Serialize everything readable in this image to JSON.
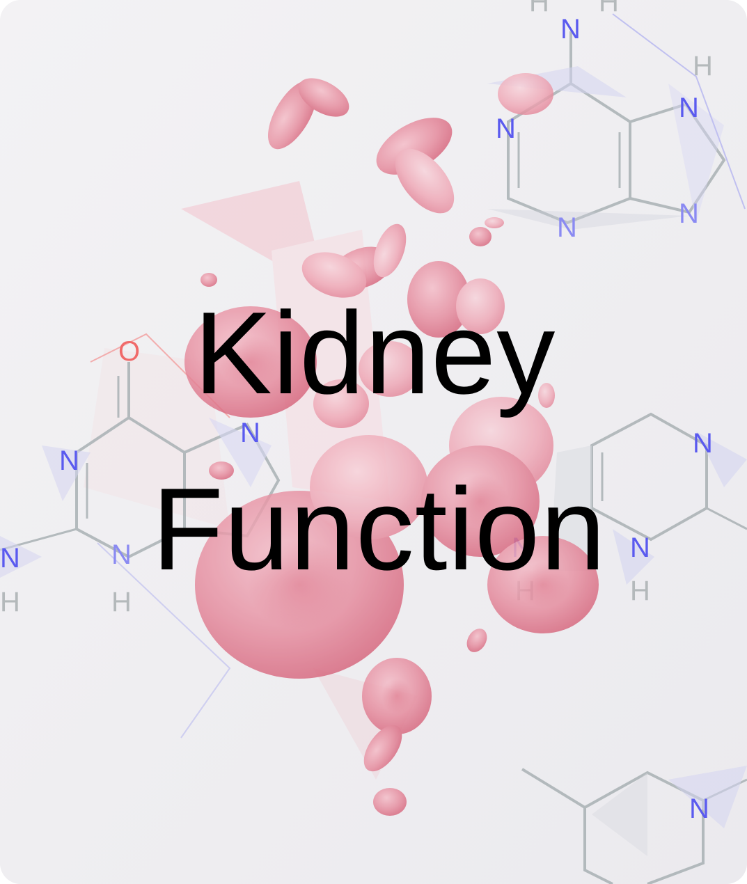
{
  "card": {
    "title_line_1": "Kidney",
    "title_line_2": "Function"
  },
  "artwork": {
    "subject": "blood-cells-and-molecules",
    "atom_labels": {
      "nitrogen": "N",
      "hydrogen": "H",
      "oxygen": "O"
    }
  },
  "colors": {
    "background": "#efeef1",
    "blood_cell": "#d9516b",
    "molecule_bond": "#9aa3a6",
    "nitrogen": "#3c3cf0",
    "oxygen": "#f05a5a",
    "text": "#000000"
  }
}
